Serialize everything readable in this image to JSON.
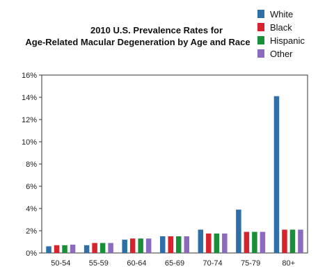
{
  "chart_data": {
    "type": "bar",
    "title": [
      "2010 U.S. Prevalence Rates for",
      "Age-Related Macular Degeneration by Age and Race"
    ],
    "categories": [
      "50-54",
      "55-59",
      "60-64",
      "65-69",
      "70-74",
      "75-79",
      "80+"
    ],
    "series": [
      {
        "name": "White",
        "color": "#2e6fa8",
        "values": [
          0.6,
          0.7,
          1.2,
          1.5,
          2.1,
          3.9,
          14.1
        ]
      },
      {
        "name": "Black",
        "color": "#d7232d",
        "values": [
          0.7,
          0.9,
          1.3,
          1.5,
          1.75,
          1.9,
          2.1
        ]
      },
      {
        "name": "Hispanic",
        "color": "#1a8f3a",
        "values": [
          0.7,
          0.9,
          1.3,
          1.5,
          1.75,
          1.9,
          2.1
        ]
      },
      {
        "name": "Other",
        "color": "#8a6bbf",
        "values": [
          0.75,
          0.9,
          1.3,
          1.5,
          1.75,
          1.9,
          2.1
        ]
      }
    ],
    "y_ticks": [
      "0%",
      "2%",
      "4%",
      "6%",
      "8%",
      "10%",
      "12%",
      "14%",
      "16%"
    ],
    "ylim": [
      0,
      16
    ],
    "ylabel": "",
    "xlabel": "",
    "grid": false,
    "legend_position": "top-right"
  }
}
